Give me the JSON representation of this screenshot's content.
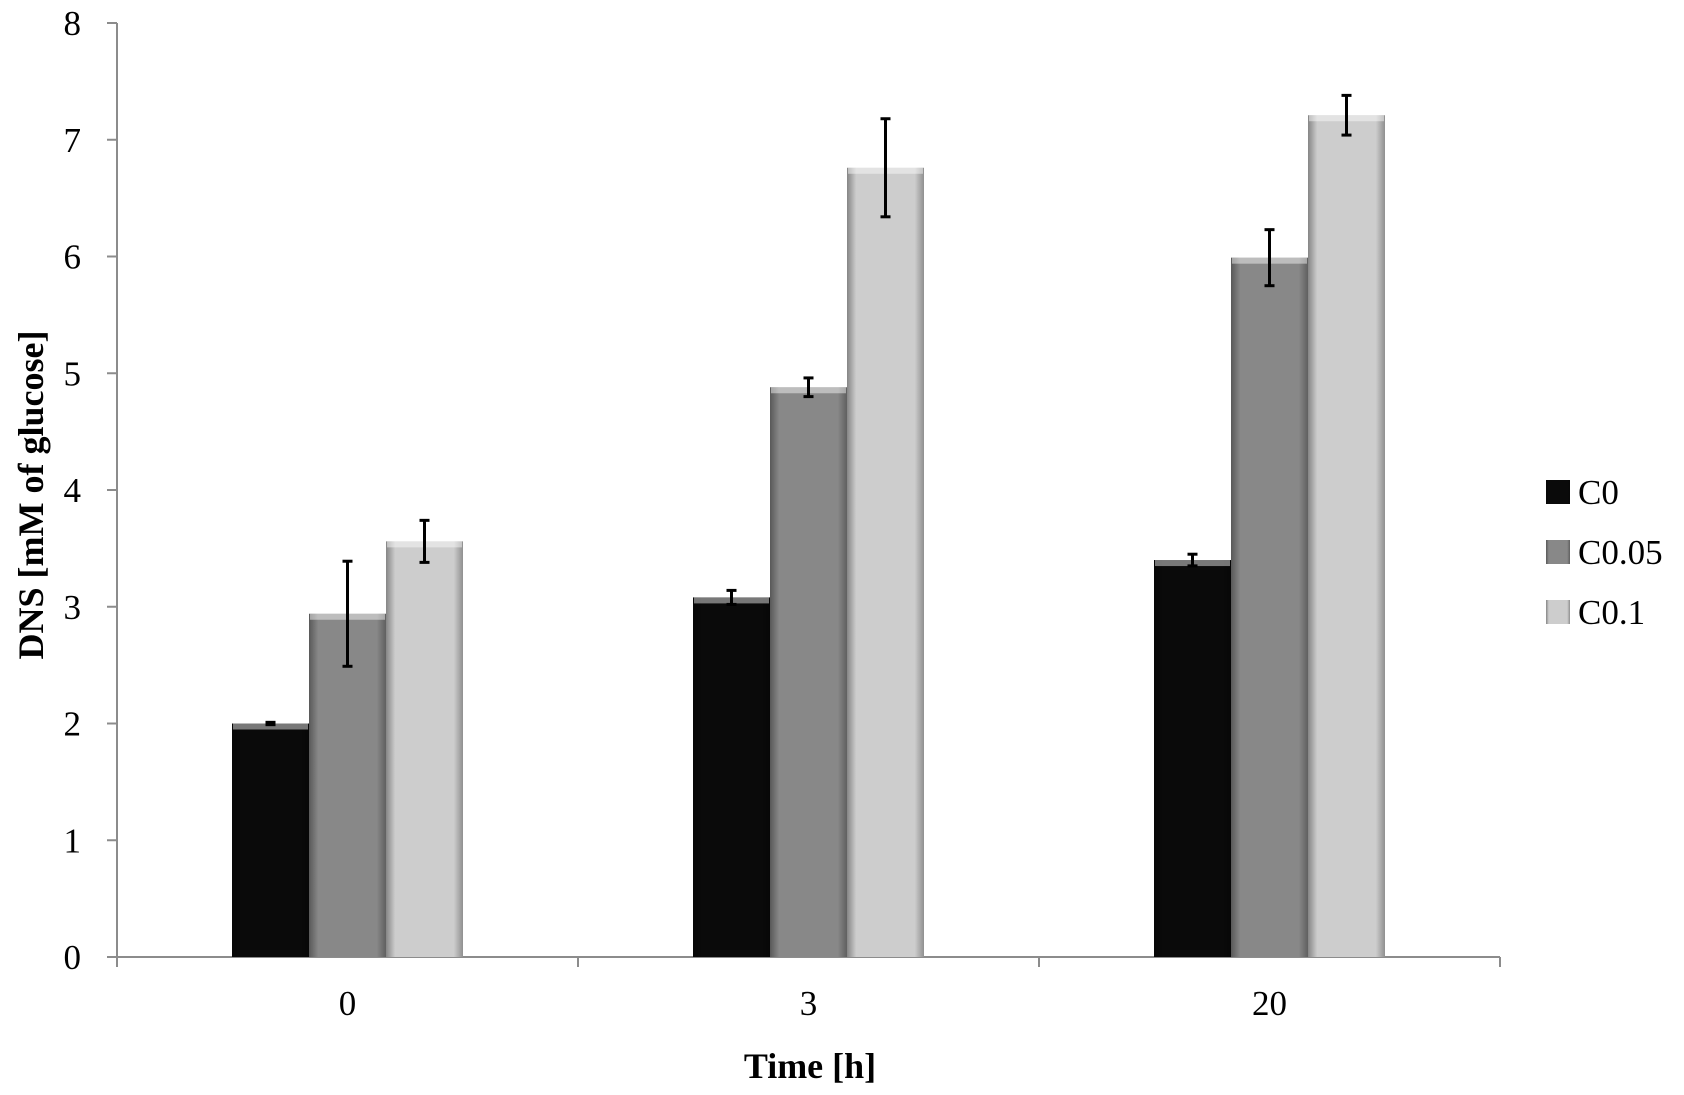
{
  "chart_data": {
    "type": "bar",
    "title": "",
    "xlabel": "Time [h]",
    "ylabel": "DNS [mM of glucose]",
    "ylim": [
      0,
      8
    ],
    "yticks": [
      0,
      1,
      2,
      3,
      4,
      5,
      6,
      7,
      8
    ],
    "categories": [
      "0",
      "3",
      "20"
    ],
    "legend_position": "right",
    "grid": false,
    "series": [
      {
        "name": "C0",
        "color": "#0a0a0a",
        "values": [
          2.0,
          3.08,
          3.4
        ],
        "errors": [
          0.01,
          0.06,
          0.05
        ]
      },
      {
        "name": "C0.05",
        "color": "#888888",
        "values": [
          2.94,
          4.88,
          5.99
        ],
        "errors": [
          0.45,
          0.08,
          0.24
        ]
      },
      {
        "name": "C0.1",
        "color": "#cdcdcd",
        "values": [
          3.56,
          6.76,
          7.21
        ],
        "errors": [
          0.18,
          0.42,
          0.17
        ]
      }
    ]
  }
}
